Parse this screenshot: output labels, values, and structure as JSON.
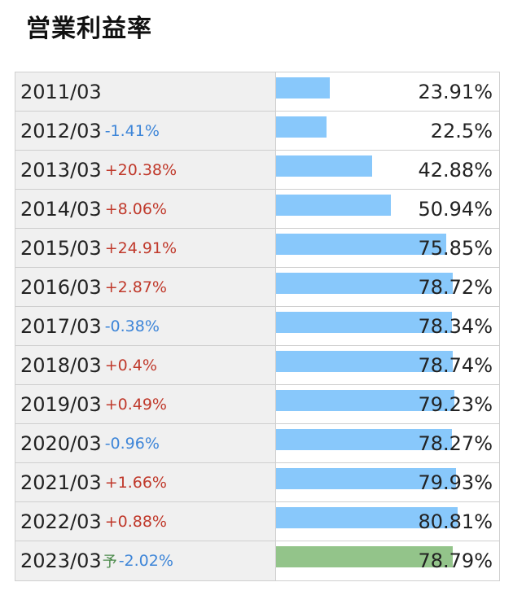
{
  "chart_data": {
    "type": "bar",
    "title": "営業利益率",
    "max_value": 100,
    "colors": {
      "bar": "#88c8fb",
      "forecast_bar": "#93c48a",
      "up": "#c0392b",
      "down": "#3d85d8"
    },
    "rows": [
      {
        "year": "2011/03",
        "forecast": "",
        "change": "",
        "direction": "",
        "value": 23.91,
        "value_label": "23.91%"
      },
      {
        "year": "2012/03",
        "forecast": "",
        "change": "-1.41%",
        "direction": "down",
        "value": 22.5,
        "value_label": "22.5%"
      },
      {
        "year": "2013/03",
        "forecast": "",
        "change": "+20.38%",
        "direction": "up",
        "value": 42.88,
        "value_label": "42.88%"
      },
      {
        "year": "2014/03",
        "forecast": "",
        "change": "+8.06%",
        "direction": "up",
        "value": 50.94,
        "value_label": "50.94%"
      },
      {
        "year": "2015/03",
        "forecast": "",
        "change": "+24.91%",
        "direction": "up",
        "value": 75.85,
        "value_label": "75.85%"
      },
      {
        "year": "2016/03",
        "forecast": "",
        "change": "+2.87%",
        "direction": "up",
        "value": 78.72,
        "value_label": "78.72%"
      },
      {
        "year": "2017/03",
        "forecast": "",
        "change": "-0.38%",
        "direction": "down",
        "value": 78.34,
        "value_label": "78.34%"
      },
      {
        "year": "2018/03",
        "forecast": "",
        "change": "+0.4%",
        "direction": "up",
        "value": 78.74,
        "value_label": "78.74%"
      },
      {
        "year": "2019/03",
        "forecast": "",
        "change": "+0.49%",
        "direction": "up",
        "value": 79.23,
        "value_label": "79.23%"
      },
      {
        "year": "2020/03",
        "forecast": "",
        "change": "-0.96%",
        "direction": "down",
        "value": 78.27,
        "value_label": "78.27%"
      },
      {
        "year": "2021/03",
        "forecast": "",
        "change": "+1.66%",
        "direction": "up",
        "value": 79.93,
        "value_label": "79.93%"
      },
      {
        "year": "2022/03",
        "forecast": "",
        "change": "+0.88%",
        "direction": "up",
        "value": 80.81,
        "value_label": "80.81%"
      },
      {
        "year": "2023/03",
        "forecast": "予",
        "change": "-2.02%",
        "direction": "down",
        "value": 78.79,
        "value_label": "78.79%"
      }
    ]
  }
}
